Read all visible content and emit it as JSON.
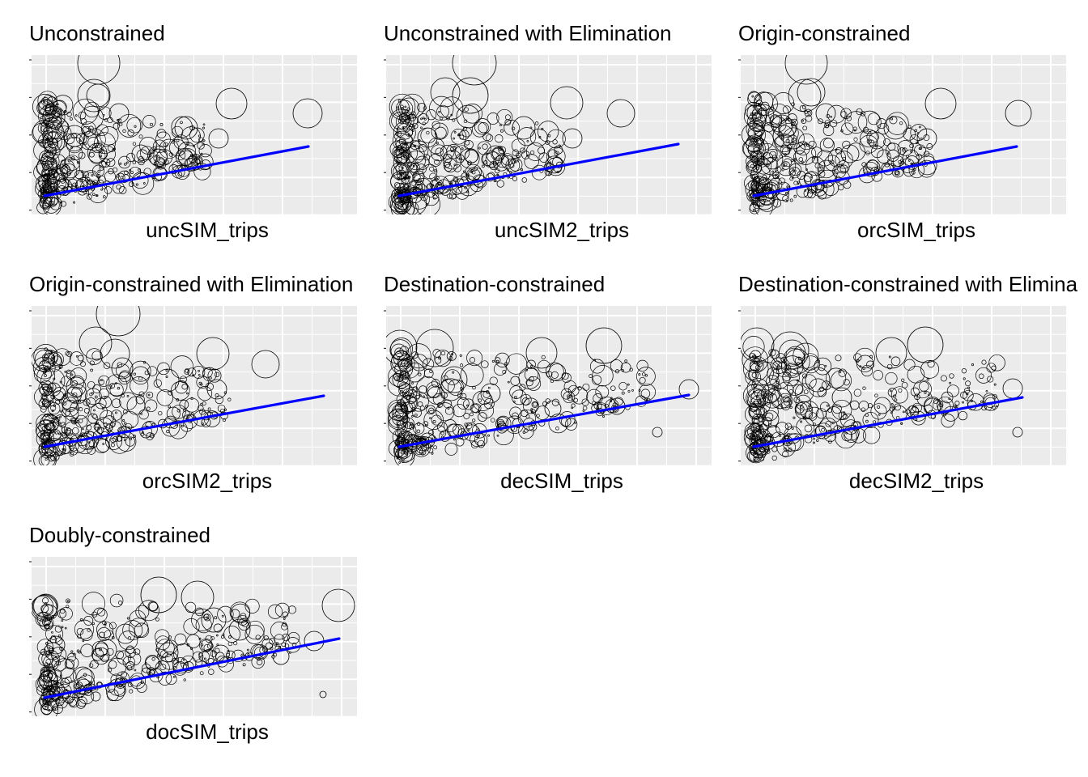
{
  "chart_data": [
    {
      "type": "scatter",
      "title": "Unconstrained",
      "xlabel": "uncSIM_trips",
      "fit_line": "linear",
      "bubbles": "open-circles",
      "grid": true,
      "line_color": "#0000ff"
    },
    {
      "type": "scatter",
      "title": "Unconstrained with Elimination",
      "xlabel": "uncSIM2_trips",
      "fit_line": "linear",
      "bubbles": "open-circles",
      "grid": true,
      "line_color": "#0000ff"
    },
    {
      "type": "scatter",
      "title": "Origin-constrained",
      "xlabel": "orcSIM_trips",
      "fit_line": "linear",
      "bubbles": "open-circles",
      "grid": true,
      "line_color": "#0000ff"
    },
    {
      "type": "scatter",
      "title": "Origin-constrained with Elimination",
      "xlabel": "orcSIM2_trips",
      "fit_line": "linear",
      "bubbles": "open-circles",
      "grid": true,
      "line_color": "#0000ff"
    },
    {
      "type": "scatter",
      "title": "Destination-constrained",
      "xlabel": "decSIM_trips",
      "fit_line": "linear",
      "bubbles": "open-circles",
      "grid": true,
      "line_color": "#0000ff"
    },
    {
      "type": "scatter",
      "title": "Destination-constrained with Elimina",
      "xlabel": "decSIM2_trips",
      "fit_line": "linear",
      "bubbles": "open-circles",
      "grid": true,
      "line_color": "#0000ff"
    },
    {
      "type": "scatter",
      "title": "Doubly-constrained",
      "xlabel": "docSIM_trips",
      "fit_line": "linear",
      "bubbles": "open-circles",
      "grid": true,
      "line_color": "#0000ff"
    }
  ]
}
